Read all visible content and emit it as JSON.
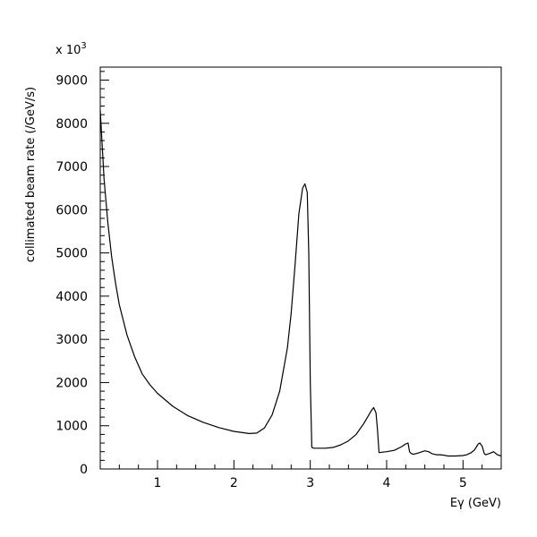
{
  "chart_data": {
    "type": "line",
    "title": "",
    "xlabel": "Eγ (GeV)",
    "ylabel": "collimated beam rate (/GeV/s)",
    "y_multiplier": "x 10",
    "y_multiplier_exp": "3",
    "xlim": [
      0.25,
      5.5
    ],
    "ylim": [
      0,
      9300
    ],
    "x_ticks": [
      1,
      2,
      3,
      4,
      5
    ],
    "x_tick_labels": [
      "1",
      "2",
      "3",
      "4",
      "5"
    ],
    "y_ticks": [
      0,
      1000,
      2000,
      3000,
      4000,
      5000,
      6000,
      7000,
      8000,
      9000
    ],
    "y_tick_labels": [
      "0",
      "1000",
      "2000",
      "3000",
      "4000",
      "5000",
      "6000",
      "7000",
      "8000",
      "9000"
    ],
    "grid": false,
    "legend": "none",
    "colors": {
      "line": "#000000",
      "axes": "#000000",
      "background": "#ffffff"
    },
    "series": [
      {
        "x": [
          0.25,
          0.3,
          0.35,
          0.4,
          0.45,
          0.5,
          0.6,
          0.7,
          0.8,
          0.9,
          1.0,
          1.2,
          1.4,
          1.6,
          1.8,
          2.0,
          2.2,
          2.3,
          2.4,
          2.5,
          2.6,
          2.7,
          2.75,
          2.8,
          2.85,
          2.9,
          2.93,
          2.96,
          2.98,
          3.0,
          3.02,
          3.05,
          3.1,
          3.2,
          3.3,
          3.4,
          3.5,
          3.6,
          3.7,
          3.75,
          3.8,
          3.83,
          3.86,
          3.88,
          3.9,
          3.95,
          4.0,
          4.1,
          4.2,
          4.25,
          4.28,
          4.3,
          4.32,
          4.35,
          4.4,
          4.5,
          4.55,
          4.6,
          4.65,
          4.7,
          4.75,
          4.8,
          4.9,
          5.0,
          5.05,
          5.1,
          5.15,
          5.2,
          5.22,
          5.25,
          5.28,
          5.3,
          5.35,
          5.4,
          5.45,
          5.5
        ],
        "y": [
          8300,
          6700,
          5700,
          4900,
          4300,
          3800,
          3100,
          2600,
          2200,
          1950,
          1750,
          1450,
          1230,
          1080,
          960,
          870,
          820,
          830,
          950,
          1250,
          1800,
          2800,
          3600,
          4700,
          5900,
          6500,
          6600,
          6400,
          5000,
          2000,
          500,
          480,
          480,
          480,
          500,
          560,
          650,
          800,
          1050,
          1200,
          1350,
          1420,
          1300,
          900,
          380,
          390,
          400,
          430,
          520,
          580,
          600,
          400,
          360,
          340,
          360,
          420,
          400,
          350,
          330,
          330,
          320,
          300,
          300,
          310,
          330,
          370,
          440,
          580,
          600,
          530,
          350,
          330,
          360,
          400,
          330,
          300
        ]
      }
    ]
  }
}
